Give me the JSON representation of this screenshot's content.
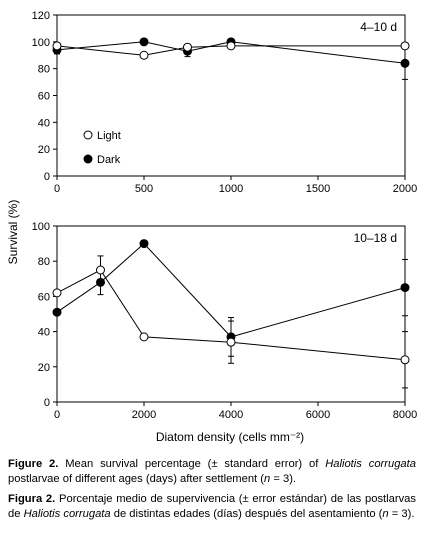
{
  "chart_data": [
    {
      "type": "line",
      "panel_label": "4–10 d",
      "x": [
        0,
        500,
        750,
        1000,
        2000
      ],
      "xticks": [
        "0",
        "500",
        "1000",
        "1500",
        "2000"
      ],
      "xtick_values": [
        0,
        500,
        1000,
        1500,
        2000
      ],
      "xlim": [
        0,
        2000
      ],
      "ylim": [
        0,
        120
      ],
      "yticks": [
        "0",
        "20",
        "40",
        "60",
        "80",
        "100",
        "120"
      ],
      "ytick_values": [
        0,
        20,
        40,
        60,
        80,
        100,
        120
      ],
      "grid": false,
      "legend_position": "lower-left",
      "series": [
        {
          "name": "Light",
          "marker": "open-circle",
          "values": [
            97,
            90,
            96,
            97,
            97
          ],
          "errors": [
            1,
            1,
            2,
            1,
            0
          ]
        },
        {
          "name": "Dark",
          "marker": "filled-circle",
          "values": [
            94,
            100,
            93,
            100,
            84
          ],
          "errors": [
            3,
            1,
            4,
            1,
            12
          ]
        }
      ]
    },
    {
      "type": "line",
      "panel_label": "10–18 d",
      "x": [
        0,
        1000,
        2000,
        4000,
        8000
      ],
      "xticks": [
        "0",
        "2000",
        "4000",
        "6000",
        "8000"
      ],
      "xtick_values": [
        0,
        2000,
        4000,
        6000,
        8000
      ],
      "xlim": [
        0,
        8000
      ],
      "ylim": [
        0,
        100
      ],
      "yticks": [
        "0",
        "20",
        "40",
        "60",
        "80",
        "100"
      ],
      "ytick_values": [
        0,
        20,
        40,
        60,
        80,
        100
      ],
      "grid": false,
      "series": [
        {
          "name": "Light",
          "marker": "open-circle",
          "values": [
            62,
            75,
            37,
            34,
            24
          ],
          "errors": [
            0,
            8,
            0,
            12,
            16
          ]
        },
        {
          "name": "Dark",
          "marker": "filled-circle",
          "values": [
            51,
            68,
            90,
            37,
            65
          ],
          "errors": [
            0,
            7,
            0,
            11,
            16
          ]
        }
      ]
    }
  ],
  "shared_ylabel": "Survival (%)",
  "shared_xlabel": "Diatom density (cells mm⁻²)",
  "captions": {
    "english": {
      "label": "Figure 2.",
      "t1": " Mean survival percentage (± standard error) of ",
      "i1": "Haliotis corrugata",
      "t2": " postlarvae of different ages (days) after settlement (",
      "i2": "n",
      "t3": " = 3)."
    },
    "spanish": {
      "label": "Figura 2.",
      "t1": " Porcentaje medio de supervivencia (± error estándar) de las postlarvas de ",
      "i1": "Haliotis corrugata",
      "t2": " de distintas edades (días) después del asentamiento (",
      "i2": "n",
      "t3": " = 3)."
    }
  },
  "colors": {
    "ink": "#000000",
    "open_marker_fill": "#ffffff",
    "background": "#ffffff"
  }
}
